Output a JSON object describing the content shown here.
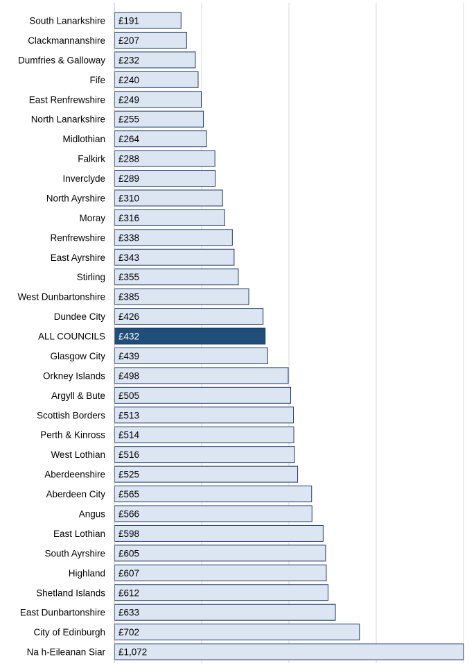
{
  "colors": {
    "bar_fill": "#dce6f2",
    "bar_stroke": "#1f3864",
    "highlight_fill": "#1f4e79",
    "gridline": "#d9d9d9",
    "axis": "#bfbfbf",
    "text": "#000000",
    "highlight_text": "#ffffff"
  },
  "chart_data": {
    "type": "bar",
    "orientation": "horizontal",
    "title": "",
    "xlabel": "",
    "ylabel": "",
    "xlim": [
      0,
      1000
    ],
    "grid": true,
    "legend": "none",
    "value_prefix": "£",
    "highlight_category": "ALL COUNCILS",
    "categories": [
      "South Lanarkshire",
      "Clackmannanshire",
      "Dumfries & Galloway",
      "Fife",
      "East Renfrewshire",
      "North Lanarkshire",
      "Midlothian",
      "Falkirk",
      "Inverclyde",
      "North Ayrshire",
      "Moray",
      "Renfrewshire",
      "East Ayrshire",
      "Stirling",
      "West Dunbartonshire",
      "Dundee City",
      "ALL COUNCILS",
      "Glasgow City",
      "Orkney Islands",
      "Argyll & Bute",
      "Scottish Borders",
      "Perth & Kinross",
      "West Lothian",
      "Aberdeenshire",
      "Aberdeen City",
      "Angus",
      "East Lothian",
      "South Ayrshire",
      "Highland",
      "Shetland Islands",
      "East Dunbartonshire",
      "City of Edinburgh",
      "Na h-Eileanan Siar"
    ],
    "values": [
      191,
      207,
      232,
      240,
      249,
      255,
      264,
      288,
      289,
      310,
      316,
      338,
      343,
      355,
      385,
      426,
      432,
      439,
      498,
      505,
      513,
      514,
      516,
      525,
      565,
      566,
      598,
      605,
      607,
      612,
      633,
      702,
      1072
    ],
    "value_labels": [
      "£191",
      "£207",
      "£232",
      "£240",
      "£249",
      "£255",
      "£264",
      "£288",
      "£289",
      "£310",
      "£316",
      "£338",
      "£343",
      "£355",
      "£385",
      "£426",
      "£432",
      "£439",
      "£498",
      "£505",
      "£513",
      "£514",
      "£516",
      "£525",
      "£565",
      "£566",
      "£598",
      "£605",
      "£607",
      "£612",
      "£633",
      "£702",
      "£1,072"
    ]
  }
}
